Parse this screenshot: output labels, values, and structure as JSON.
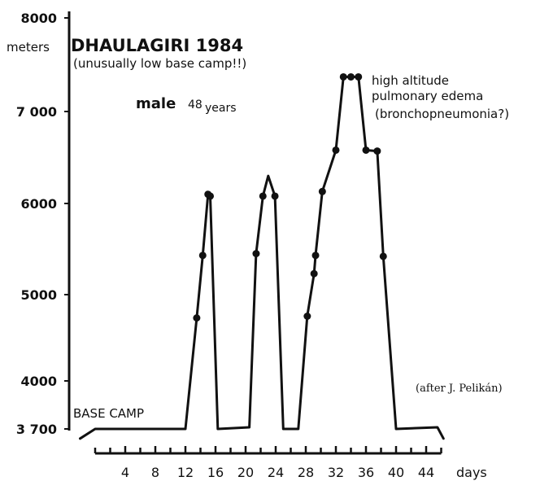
{
  "chart_data": {
    "type": "line",
    "title": "DHAULAGIRI 1984",
    "subtitle": "(unusually low base camp!!)",
    "subject": {
      "sex": "male",
      "age": "48",
      "age_unit": "years"
    },
    "ylabel": "meters",
    "xlabel": "days",
    "y_ticks": [
      {
        "value": 3700,
        "label": "3 700"
      },
      {
        "value": 4000,
        "label": "4000"
      },
      {
        "value": 5000,
        "label": "5000"
      },
      {
        "value": 6000,
        "label": "6000"
      },
      {
        "value": 7000,
        "label": "7 000"
      },
      {
        "value": 8000,
        "label": "8000"
      }
    ],
    "x_ticks": [
      {
        "value": 4,
        "label": "4"
      },
      {
        "value": 8,
        "label": "8"
      },
      {
        "value": 12,
        "label": "12"
      },
      {
        "value": 16,
        "label": "16"
      },
      {
        "value": 20,
        "label": "20"
      },
      {
        "value": 24,
        "label": "24"
      },
      {
        "value": 28,
        "label": "28"
      },
      {
        "value": 32,
        "label": "32"
      },
      {
        "value": 36,
        "label": "36"
      },
      {
        "value": 40,
        "label": "40"
      },
      {
        "value": 44,
        "label": "44"
      }
    ],
    "x_minor_ticks": [
      0,
      2,
      6,
      10,
      14,
      18,
      22,
      26,
      30,
      34,
      38,
      42,
      46
    ],
    "xlim": [
      -2,
      47
    ],
    "ylim": [
      3700,
      8000
    ],
    "series": [
      {
        "points": [
          {
            "x": -2,
            "y": 3640,
            "marker": false
          },
          {
            "x": 0,
            "y": 3700,
            "marker": false
          },
          {
            "x": 12,
            "y": 3700,
            "marker": false
          },
          {
            "x": 13.5,
            "y": 4730,
            "marker": true
          },
          {
            "x": 14.3,
            "y": 5430,
            "marker": true
          },
          {
            "x": 15.0,
            "y": 6100,
            "marker": true
          },
          {
            "x": 15.3,
            "y": 6080,
            "marker": true
          },
          {
            "x": 16.3,
            "y": 3700,
            "marker": false
          },
          {
            "x": 20.5,
            "y": 3710,
            "marker": false
          },
          {
            "x": 21.4,
            "y": 5450,
            "marker": true
          },
          {
            "x": 22.3,
            "y": 6080,
            "marker": true
          },
          {
            "x": 23.0,
            "y": 6300,
            "marker": false
          },
          {
            "x": 23.9,
            "y": 6080,
            "marker": true
          },
          {
            "x": 25.0,
            "y": 3700,
            "marker": false
          },
          {
            "x": 27.0,
            "y": 3700,
            "marker": false
          },
          {
            "x": 28.2,
            "y": 4750,
            "marker": true
          },
          {
            "x": 29.1,
            "y": 5230,
            "marker": true
          },
          {
            "x": 29.3,
            "y": 5430,
            "marker": true
          },
          {
            "x": 30.2,
            "y": 6130,
            "marker": true
          },
          {
            "x": 32.0,
            "y": 6580,
            "marker": true
          },
          {
            "x": 33.0,
            "y": 7370,
            "marker": true
          },
          {
            "x": 34.0,
            "y": 7370,
            "marker": true
          },
          {
            "x": 35.0,
            "y": 7370,
            "marker": true
          },
          {
            "x": 36.0,
            "y": 6580,
            "marker": true
          },
          {
            "x": 37.5,
            "y": 6570,
            "marker": true
          },
          {
            "x": 38.3,
            "y": 5420,
            "marker": true
          },
          {
            "x": 40.0,
            "y": 3700,
            "marker": false
          },
          {
            "x": 45.5,
            "y": 3710,
            "marker": false
          },
          {
            "x": 46.3,
            "y": 3640,
            "marker": false
          }
        ]
      }
    ],
    "annotations": {
      "base_camp": "BASE CAMP",
      "edema_lines": [
        "high altitude",
        "pulmonary edema",
        "(bronchopneumonia?)"
      ],
      "credit": "(after J. Pelikán)"
    }
  }
}
